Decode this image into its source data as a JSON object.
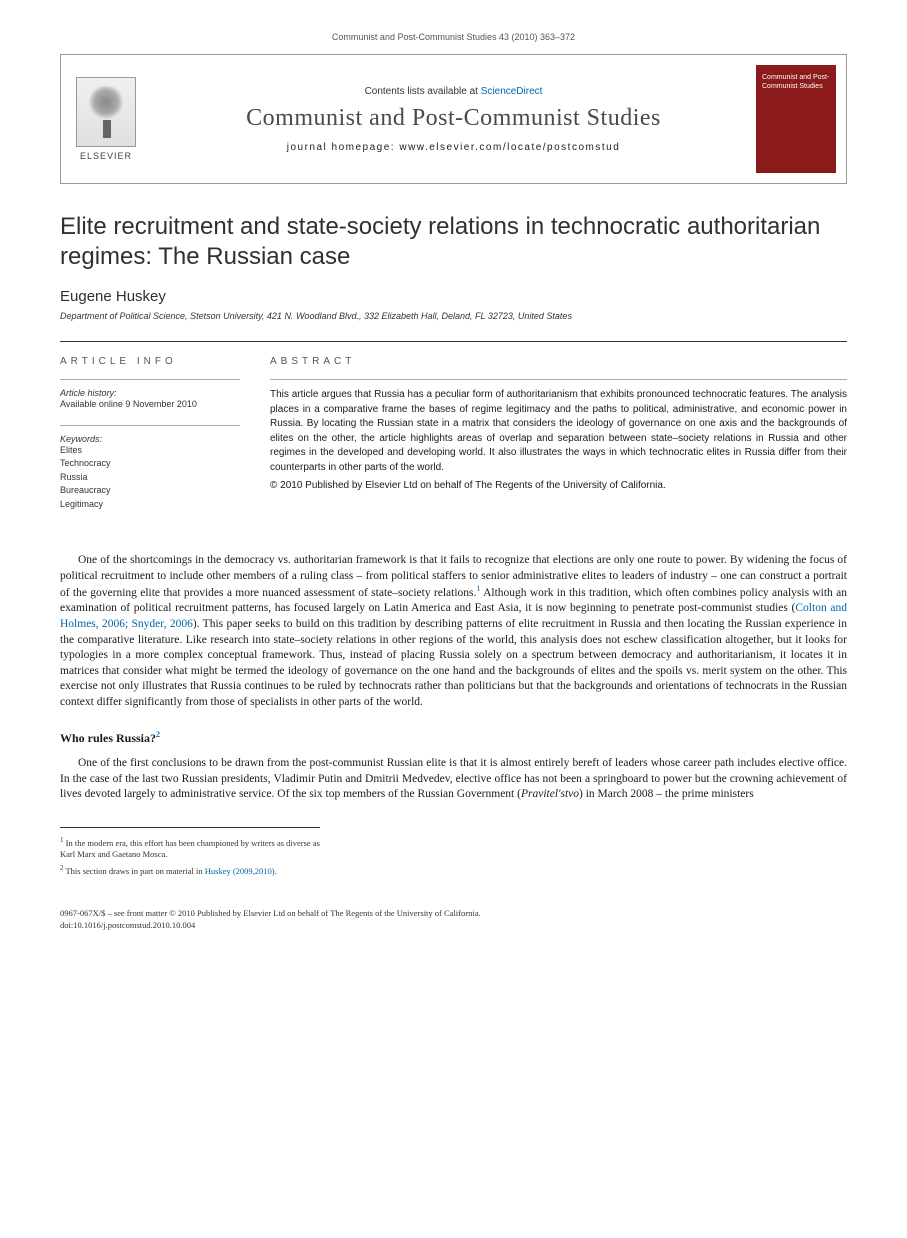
{
  "header": {
    "citation": "Communist and Post-Communist Studies 43 (2010) 363–372"
  },
  "banner": {
    "contents_prefix": "Contents lists available at ",
    "sciencedirect": "ScienceDirect",
    "journal_name": "Communist and Post-Communist Studies",
    "homepage_label": "journal homepage: www.elsevier.com/locate/postcomstud",
    "publisher_name": "ELSEVIER",
    "cover_text": "Communist and Post-Communist Studies"
  },
  "article": {
    "title": "Elite recruitment and state-society relations in technocratic authoritarian regimes: The Russian case",
    "author": "Eugene Huskey",
    "affiliation": "Department of Political Science, Stetson University, 421 N. Woodland Blvd., 332 Elizabeth Hall, Deland, FL 32723, United States"
  },
  "info": {
    "heading": "ARTICLE INFO",
    "history_label": "Article history:",
    "history_text": "Available online 9 November 2010",
    "keywords_label": "Keywords:",
    "keywords": [
      "Elites",
      "Technocracy",
      "Russia",
      "Bureaucracy",
      "Legitimacy"
    ]
  },
  "abstract": {
    "heading": "ABSTRACT",
    "text": "This article argues that Russia has a peculiar form of authoritarianism that exhibits pronounced technocratic features. The analysis places in a comparative frame the bases of regime legitimacy and the paths to political, administrative, and economic power in Russia. By locating the Russian state in a matrix that considers the ideology of governance on one axis and the backgrounds of elites on the other, the article highlights areas of overlap and separation between state–society relations in Russia and other regimes in the developed and developing world. It also illustrates the ways in which technocratic elites in Russia differ from their counterparts in other parts of the world.",
    "copyright": "© 2010 Published by Elsevier Ltd on behalf of The Regents of the University of California."
  },
  "body": {
    "p1_a": "One of the shortcomings in the democracy vs. authoritarian framework is that it fails to recognize that elections are only one route to power. By widening the focus of political recruitment to include other members of a ruling class – from political staffers to senior administrative elites to leaders of industry – one can construct a portrait of the governing elite that provides a more nuanced assessment of state–society relations.",
    "p1_b": " Although work in this tradition, which often combines policy analysis with an examination of political recruitment patterns, has focused largely on Latin America and East Asia, it is now beginning to penetrate post-communist studies (",
    "p1_cite": "Colton and Holmes, 2006; Snyder, 2006",
    "p1_c": "). This paper seeks to build on this tradition by describing patterns of elite recruitment in Russia and then locating the Russian experience in the comparative literature. Like research into state–society relations in other regions of the world, this analysis does not eschew classification altogether, but it looks for typologies in a more complex conceptual framework. Thus, instead of placing Russia solely on a spectrum between democracy and authoritarianism, it locates it in matrices that consider what might be termed the ideology of governance on the one hand and the backgrounds of elites and the spoils vs. merit system on the other. This exercise not only illustrates that Russia continues to be ruled by technocrats rather than politicians but that the backgrounds and orientations of technocrats in the Russian context differ significantly from those of specialists in other parts of the world.",
    "h1": "Who rules Russia?",
    "p2_a": "One of the first conclusions to be drawn from the post-communist Russian elite is that it is almost entirely bereft of leaders whose career path includes elective office. In the case of the last two Russian presidents, Vladimir Putin and Dmitrii Medvedev, elective office has not been a springboard to power but the crowning achievement of lives devoted largely to administrative service. Of the six top members of the Russian Government (",
    "p2_i": "Pravitel'stvo",
    "p2_b": ") in March 2008 – the prime ministers"
  },
  "footnotes": {
    "fn1": " In the modern era, this effort has been championed by writers as diverse as Karl Marx and Gaetano Mosca.",
    "fn2_a": " This section draws in part on material in ",
    "fn2_cite": "Huskey (2009,2010)",
    "fn2_b": "."
  },
  "footer": {
    "line1": "0967-067X/$ – see front matter © 2010 Published by Elsevier Ltd on behalf of The Regents of the University of California.",
    "line2": "doi:10.1016/j.postcomstud.2010.10.004"
  },
  "colors": {
    "link": "#0066aa",
    "cover_bg": "#8b1a1a",
    "text": "#1a1a1a",
    "muted": "#555",
    "border": "#333"
  }
}
